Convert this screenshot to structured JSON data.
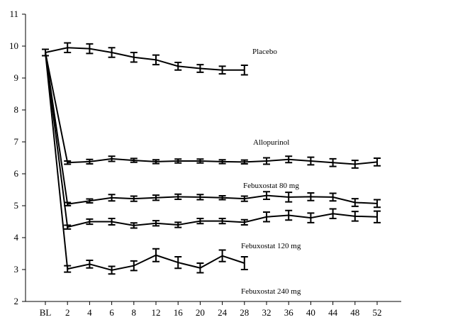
{
  "chart_data": {
    "type": "line",
    "title": "",
    "xlabel": "",
    "ylabel": "",
    "ylim": [
      2,
      11
    ],
    "yticks": [
      2,
      3,
      4,
      5,
      6,
      7,
      8,
      9,
      10,
      11
    ],
    "categories": [
      "BL",
      "2",
      "4",
      "6",
      "8",
      "12",
      "16",
      "20",
      "24",
      "28",
      "32",
      "36",
      "40",
      "44",
      "48",
      "52"
    ],
    "grid": false,
    "legend": "inline labels",
    "series": [
      {
        "name": "Placebo",
        "values": [
          9.8,
          9.95,
          9.92,
          9.8,
          9.65,
          9.57,
          9.37,
          9.3,
          9.25,
          9.25,
          null,
          null,
          null,
          null,
          null,
          null
        ],
        "errors": [
          0.1,
          0.15,
          0.15,
          0.15,
          0.15,
          0.15,
          0.12,
          0.12,
          0.12,
          0.15,
          null,
          null,
          null,
          null,
          null,
          null
        ]
      },
      {
        "name": "Allopurinol",
        "values": [
          9.8,
          6.35,
          6.38,
          6.47,
          6.42,
          6.38,
          6.4,
          6.4,
          6.38,
          6.37,
          6.4,
          6.45,
          6.4,
          6.35,
          6.3,
          6.37
        ],
        "errors": [
          0.1,
          0.05,
          0.07,
          0.08,
          0.06,
          0.06,
          0.06,
          0.06,
          0.06,
          0.06,
          0.1,
          0.1,
          0.12,
          0.12,
          0.12,
          0.12
        ]
      },
      {
        "name": "Febuxostat 80 mg",
        "values": [
          9.8,
          5.05,
          5.15,
          5.25,
          5.22,
          5.25,
          5.28,
          5.27,
          5.25,
          5.22,
          5.32,
          5.27,
          5.28,
          5.27,
          5.1,
          5.07
        ],
        "errors": [
          0.1,
          0.05,
          0.06,
          0.1,
          0.08,
          0.08,
          0.08,
          0.08,
          0.06,
          0.08,
          0.12,
          0.15,
          0.12,
          0.12,
          0.12,
          0.12
        ]
      },
      {
        "name": "Febuxostat 120 mg",
        "values": [
          9.8,
          4.33,
          4.5,
          4.5,
          4.38,
          4.45,
          4.4,
          4.52,
          4.52,
          4.48,
          4.65,
          4.7,
          4.62,
          4.75,
          4.67,
          4.65
        ],
        "errors": [
          0.1,
          0.06,
          0.08,
          0.1,
          0.08,
          0.08,
          0.08,
          0.08,
          0.08,
          0.08,
          0.15,
          0.15,
          0.15,
          0.15,
          0.15,
          0.18
        ]
      },
      {
        "name": "Febuxostat 240 mg",
        "values": [
          9.8,
          3.02,
          3.17,
          2.98,
          3.12,
          3.45,
          3.22,
          3.05,
          3.43,
          3.2,
          null,
          null,
          null,
          null,
          null,
          null
        ],
        "errors": [
          0.1,
          0.1,
          0.12,
          0.12,
          0.15,
          0.2,
          0.18,
          0.15,
          0.18,
          0.2,
          null,
          null,
          null,
          null,
          null,
          null
        ]
      }
    ]
  }
}
